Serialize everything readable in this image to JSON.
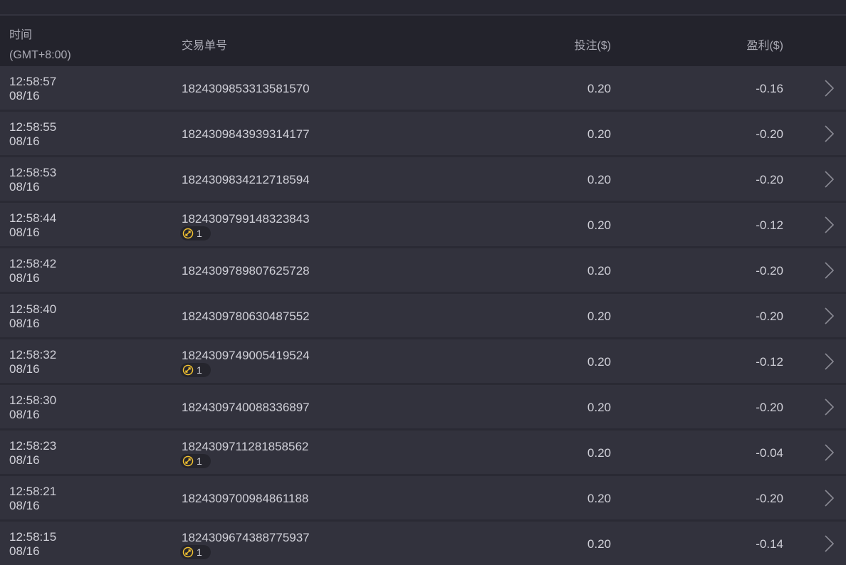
{
  "header": {
    "time_label": "时间",
    "timezone": "(GMT+8:00)",
    "order_id_label": "交易单号",
    "bet_label": "投注($)",
    "profit_label": "盈利($)"
  },
  "colors": {
    "badge_icon": "#f2c230",
    "row_bg": "#32323d",
    "header_bg": "#23232c"
  },
  "rows": [
    {
      "time": "12:58:57",
      "date": "08/16",
      "order_id": "1824309853313581570",
      "bet": "0.20",
      "profit": "-0.16",
      "badge": null
    },
    {
      "time": "12:58:55",
      "date": "08/16",
      "order_id": "1824309843939314177",
      "bet": "0.20",
      "profit": "-0.20",
      "badge": null
    },
    {
      "time": "12:58:53",
      "date": "08/16",
      "order_id": "1824309834212718594",
      "bet": "0.20",
      "profit": "-0.20",
      "badge": null
    },
    {
      "time": "12:58:44",
      "date": "08/16",
      "order_id": "1824309799148323843",
      "bet": "0.20",
      "profit": "-0.12",
      "badge": "1"
    },
    {
      "time": "12:58:42",
      "date": "08/16",
      "order_id": "1824309789807625728",
      "bet": "0.20",
      "profit": "-0.20",
      "badge": null
    },
    {
      "time": "12:58:40",
      "date": "08/16",
      "order_id": "1824309780630487552",
      "bet": "0.20",
      "profit": "-0.20",
      "badge": null
    },
    {
      "time": "12:58:32",
      "date": "08/16",
      "order_id": "1824309749005419524",
      "bet": "0.20",
      "profit": "-0.12",
      "badge": "1"
    },
    {
      "time": "12:58:30",
      "date": "08/16",
      "order_id": "1824309740088336897",
      "bet": "0.20",
      "profit": "-0.20",
      "badge": null
    },
    {
      "time": "12:58:23",
      "date": "08/16",
      "order_id": "1824309711281858562",
      "bet": "0.20",
      "profit": "-0.04",
      "badge": "1"
    },
    {
      "time": "12:58:21",
      "date": "08/16",
      "order_id": "1824309700984861188",
      "bet": "0.20",
      "profit": "-0.20",
      "badge": null
    },
    {
      "time": "12:58:15",
      "date": "08/16",
      "order_id": "1824309674388775937",
      "bet": "0.20",
      "profit": "-0.14",
      "badge": "1"
    }
  ]
}
